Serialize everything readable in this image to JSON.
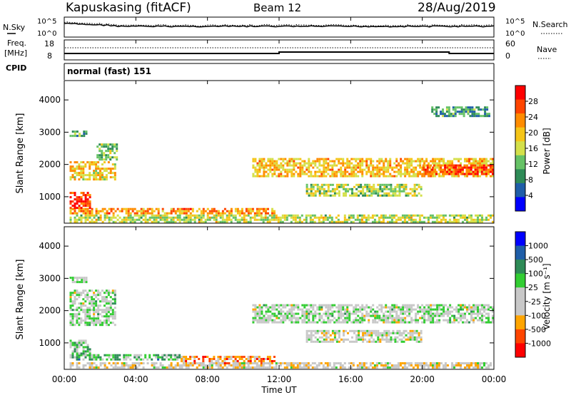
{
  "header": {
    "station": "Kapuskasing (fitACF)",
    "beam": "Beam 12",
    "date": "28/Aug/2019"
  },
  "panels": {
    "nsky_label": "N.Sky",
    "nsearch_label": "N.Search",
    "freq_label_1": "Freq.",
    "freq_label_2": "[MHz]",
    "nave_label": "Nave",
    "cpid_label": "CPID",
    "cpid_value": "normal (fast) 151",
    "noise_ticks": [
      "10^5",
      "10^0"
    ],
    "freq_ticks": [
      "18",
      "8"
    ],
    "nave_ticks": [
      "60",
      "0"
    ]
  },
  "colors": {
    "power_scale": [
      "#0000ff",
      "#1f5ea8",
      "#2e8b57",
      "#66c266",
      "#d4e04a",
      "#f5c518",
      "#ff8c00",
      "#ff4500",
      "#ff0000"
    ],
    "velocity_scale": [
      "#ff0000",
      "#ff4500",
      "#ffa500",
      "#c8c8c8",
      "#c8c8c8",
      "#32cd32",
      "#2e8b57",
      "#1f5ea8",
      "#0000ff"
    ],
    "velocity_ground": "#c8c8c8"
  },
  "chart_data": [
    {
      "type": "heatmap",
      "name": "power",
      "ylabel": "Slant Range [km]",
      "xlabel": "Time UT",
      "ylim": [
        180,
        4600
      ],
      "xlim": [
        "00:00",
        "24:00"
      ],
      "x_ticks": [
        "00:00",
        "04:00",
        "08:00",
        "12:00",
        "16:00",
        "20:00",
        "00:00"
      ],
      "y_ticks": [
        1000,
        2000,
        3000,
        4000
      ],
      "colorbar": {
        "label": "Power [dB]",
        "ticks": [
          4,
          8,
          12,
          16,
          20,
          24,
          28
        ],
        "range": [
          0,
          32
        ]
      },
      "regions": [
        {
          "t0": 0.3,
          "t1": 11.8,
          "r0": 450,
          "r1": 650,
          "level": 0.72
        },
        {
          "t0": 0.3,
          "t1": 1.5,
          "r0": 650,
          "r1": 1150,
          "level": 0.9
        },
        {
          "t0": 0.3,
          "t1": 2.9,
          "r0": 1500,
          "r1": 2100,
          "level": 0.6
        },
        {
          "t0": 0.3,
          "t1": 1.3,
          "r0": 2850,
          "r1": 3050,
          "level": 0.35
        },
        {
          "t0": 1.8,
          "t1": 3.0,
          "r0": 2100,
          "r1": 2650,
          "level": 0.4
        },
        {
          "t0": 10.5,
          "t1": 24.0,
          "r0": 1600,
          "r1": 2200,
          "level": 0.62
        },
        {
          "t0": 13.5,
          "t1": 20.0,
          "r0": 1000,
          "r1": 1400,
          "level": 0.45
        },
        {
          "t0": 20.0,
          "t1": 24.0,
          "r0": 1700,
          "r1": 2000,
          "level": 0.85
        },
        {
          "t0": 0.3,
          "t1": 24.0,
          "r0": 180,
          "r1": 450,
          "level": 0.5
        },
        {
          "t0": 20.5,
          "t1": 23.8,
          "r0": 3500,
          "r1": 3800,
          "level": 0.3
        }
      ]
    },
    {
      "type": "heatmap",
      "name": "velocity",
      "ylabel": "Slant Range [km]",
      "xlabel": "Time UT",
      "ylim": [
        180,
        4600
      ],
      "xlim": [
        "00:00",
        "24:00"
      ],
      "x_ticks": [
        "00:00",
        "04:00",
        "08:00",
        "12:00",
        "16:00",
        "20:00",
        "00:00"
      ],
      "y_ticks": [
        1000,
        2000,
        3000,
        4000
      ],
      "colorbar": {
        "label": "Velocity [m s⁻¹]",
        "ticks": [
          "1000",
          "500",
          "100",
          "25",
          "-25",
          "-100",
          "-500",
          "-1000"
        ]
      },
      "regions": [
        {
          "t0": 0.3,
          "t1": 6.5,
          "r0": 450,
          "r1": 650,
          "level": 0.62
        },
        {
          "t0": 6.5,
          "t1": 11.8,
          "r0": 350,
          "r1": 600,
          "level": 0.25
        },
        {
          "t0": 0.3,
          "t1": 24.0,
          "r0": 180,
          "r1": 400,
          "level": 0.4
        },
        {
          "t0": 0.3,
          "t1": 1.5,
          "r0": 650,
          "r1": 1100,
          "level": 0.55
        },
        {
          "t0": 0.3,
          "t1": 2.9,
          "r0": 1500,
          "r1": 2650,
          "level": 0.5
        },
        {
          "t0": 10.5,
          "t1": 24.0,
          "r0": 1600,
          "r1": 2200,
          "level": 0.5
        },
        {
          "t0": 13.5,
          "t1": 20.0,
          "r0": 1000,
          "r1": 1400,
          "level": 0.45
        },
        {
          "t0": 0.3,
          "t1": 1.3,
          "r0": 2850,
          "r1": 3050,
          "level": 0.5
        }
      ]
    }
  ]
}
